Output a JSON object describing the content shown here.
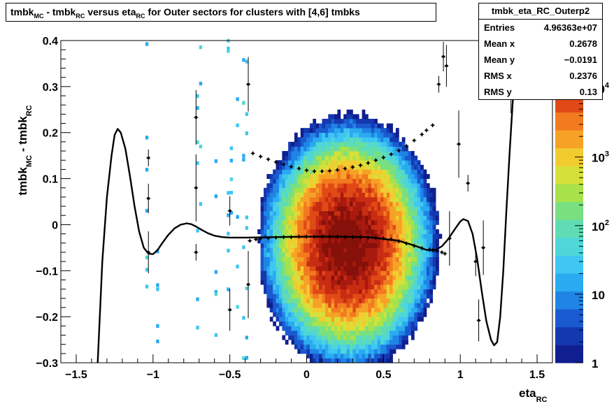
{
  "title": {
    "part1": "tmbk",
    "sub1": "MC",
    "part2": " - tmbk",
    "sub2": "RC",
    "part3": " versus eta",
    "sub3": "RC",
    "part4": " for Outer sectors for clusters with [4,6] tmbks"
  },
  "stats": {
    "name": "tmbk_eta_RC_Outerp2",
    "rows": [
      {
        "key": "Entries",
        "value": "4.96363e+07"
      },
      {
        "key": "Mean x",
        "value": "0.2678"
      },
      {
        "key": "Mean y",
        "value": "−0.0191"
      },
      {
        "key": "RMS x",
        "value": "0.2376"
      },
      {
        "key": "RMS y",
        "value": "0.13"
      }
    ]
  },
  "axes": {
    "xlabel_main": "eta",
    "xlabel_sub": "RC",
    "ylabel_main1": "tmbk",
    "ylabel_sub1": "MC",
    "ylabel_main2": " - tmbk",
    "ylabel_sub2": "RC"
  },
  "colors": {
    "palette": [
      "#0f1f8f",
      "#1438b0",
      "#1a5ad0",
      "#1f84e6",
      "#2aaaf0",
      "#3fc6f2",
      "#4fd6d8",
      "#5fdcb4",
      "#79e07f",
      "#a8e24a",
      "#d6e03a",
      "#f2cc2f",
      "#f6a226",
      "#f27a1f",
      "#e04a17",
      "#c82c12",
      "#a8190e",
      "#86100a"
    ]
  },
  "chart_data": {
    "type": "heatmap",
    "title": "tmbk_MC - tmbk_RC versus eta_RC for Outer sectors for clusters with [4,6] tmbks",
    "xlabel": "eta_RC",
    "ylabel": "tmbk_MC - tmbk_RC",
    "xlim": [
      -1.6,
      1.6
    ],
    "ylim": [
      -0.3,
      0.4
    ],
    "x_ticks": [
      "−1.5",
      "−1",
      "−0.5",
      "0",
      "0.5",
      "1",
      "1.5"
    ],
    "x_tick_values": [
      -1.5,
      -1,
      -0.5,
      0,
      0.5,
      1,
      1.5
    ],
    "y_ticks": [
      "−0.3",
      "−0.2",
      "−0.1",
      "0",
      "0.1",
      "0.2",
      "0.3",
      "0.4"
    ],
    "y_tick_values": [
      -0.3,
      -0.2,
      -0.1,
      0,
      0.1,
      0.2,
      0.3,
      0.4
    ],
    "z_scale": "log",
    "z_ticks": [
      "1",
      "10",
      "10",
      "10",
      "10"
    ],
    "z_tick_exponents": [
      "",
      "",
      "2",
      "3",
      "4"
    ],
    "z_tick_values": [
      1,
      10,
      100,
      1000,
      10000
    ],
    "z_max": 50000,
    "density": {
      "x_center": 0.27,
      "y_center": -0.04,
      "x_range": [
        -0.38,
        1.45
      ],
      "peak_log10": 4.7
    },
    "profile_mean": {
      "x": [
        -0.37,
        -0.33,
        -0.3,
        -0.25,
        -0.2,
        -0.15,
        -0.1,
        -0.05,
        0,
        0.05,
        0.1,
        0.15,
        0.2,
        0.25,
        0.3,
        0.35,
        0.4,
        0.45,
        0.5,
        0.55,
        0.6,
        0.65,
        0.7,
        0.75,
        0.8,
        0.82,
        0.85,
        0.88,
        0.9
      ],
      "y": [
        -0.035,
        -0.032,
        -0.03,
        -0.029,
        -0.028,
        -0.027,
        -0.027,
        -0.026,
        -0.026,
        -0.026,
        -0.026,
        -0.026,
        -0.026,
        -0.027,
        -0.027,
        -0.027,
        -0.028,
        -0.029,
        -0.03,
        -0.032,
        -0.036,
        -0.041,
        -0.046,
        -0.051,
        -0.054,
        -0.055,
        -0.057,
        -0.06,
        -0.063
      ]
    },
    "profile_upper": {
      "x": [
        -0.35,
        -0.3,
        -0.25,
        -0.2,
        -0.15,
        -0.1,
        -0.05,
        0,
        0.05,
        0.1,
        0.15,
        0.2,
        0.25,
        0.3,
        0.35,
        0.4,
        0.45,
        0.5,
        0.55,
        0.6,
        0.65,
        0.7,
        0.75,
        0.78,
        0.82
      ],
      "y": [
        0.155,
        0.148,
        0.142,
        0.136,
        0.131,
        0.126,
        0.122,
        0.118,
        0.116,
        0.116,
        0.117,
        0.119,
        0.122,
        0.125,
        0.129,
        0.134,
        0.14,
        0.146,
        0.153,
        0.161,
        0.171,
        0.183,
        0.196,
        0.205,
        0.216
      ]
    },
    "outlier_points": [
      {
        "x": -1.03,
        "y": 0.145
      },
      {
        "x": -1.03,
        "y": 0.057
      },
      {
        "x": -1.03,
        "y": -0.06
      },
      {
        "x": -0.72,
        "y": 0.233
      },
      {
        "x": -0.72,
        "y": 0.08
      },
      {
        "x": -0.72,
        "y": -0.06
      },
      {
        "x": -0.5,
        "y": 0.03
      },
      {
        "x": -0.5,
        "y": -0.185
      },
      {
        "x": -0.38,
        "y": 0.305
      },
      {
        "x": -0.38,
        "y": -0.13
      },
      {
        "x": 0.86,
        "y": 0.305
      },
      {
        "x": 0.89,
        "y": 0.365
      },
      {
        "x": 0.91,
        "y": 0.345
      },
      {
        "x": 0.93,
        "y": -0.03
      },
      {
        "x": 0.99,
        "y": 0.175
      },
      {
        "x": 1.05,
        "y": 0.09
      },
      {
        "x": 1.1,
        "y": -0.08
      },
      {
        "x": 1.12,
        "y": -0.208
      },
      {
        "x": 1.15,
        "y": -0.05
      },
      {
        "x": 1.33,
        "y": 0.315
      }
    ],
    "fit_curve": {
      "x": [
        -1.36,
        -1.33,
        -1.3,
        -1.27,
        -1.25,
        -1.23,
        -1.21,
        -1.18,
        -1.15,
        -1.12,
        -1.09,
        -1.06,
        -1.03,
        -1.0,
        -0.97,
        -0.94,
        -0.9,
        -0.86,
        -0.82,
        -0.78,
        -0.75,
        -0.72,
        -0.68,
        -0.64,
        -0.6,
        -0.55,
        -0.5,
        -0.4,
        -0.2,
        0,
        0.2,
        0.4,
        0.6,
        0.7,
        0.78,
        0.84,
        0.88,
        0.92,
        0.96,
        1.0,
        1.02,
        1.05,
        1.08,
        1.11,
        1.14,
        1.17,
        1.2,
        1.22,
        1.24,
        1.26,
        1.28,
        1.3,
        1.32,
        1.34,
        1.36,
        1.38
      ],
      "y": [
        -0.3,
        -0.08,
        0.06,
        0.15,
        0.195,
        0.208,
        0.2,
        0.165,
        0.105,
        0.04,
        -0.015,
        -0.05,
        -0.063,
        -0.064,
        -0.055,
        -0.04,
        -0.022,
        -0.008,
        0.0,
        0.003,
        0.001,
        -0.004,
        -0.012,
        -0.019,
        -0.024,
        -0.027,
        -0.028,
        -0.028,
        -0.027,
        -0.026,
        -0.026,
        -0.027,
        -0.035,
        -0.045,
        -0.055,
        -0.055,
        -0.047,
        -0.032,
        -0.012,
        0.007,
        0.012,
        0.008,
        -0.02,
        -0.075,
        -0.145,
        -0.21,
        -0.25,
        -0.262,
        -0.255,
        -0.2,
        -0.1,
        0.03,
        0.15,
        0.26,
        0.35,
        0.4
      ]
    }
  }
}
